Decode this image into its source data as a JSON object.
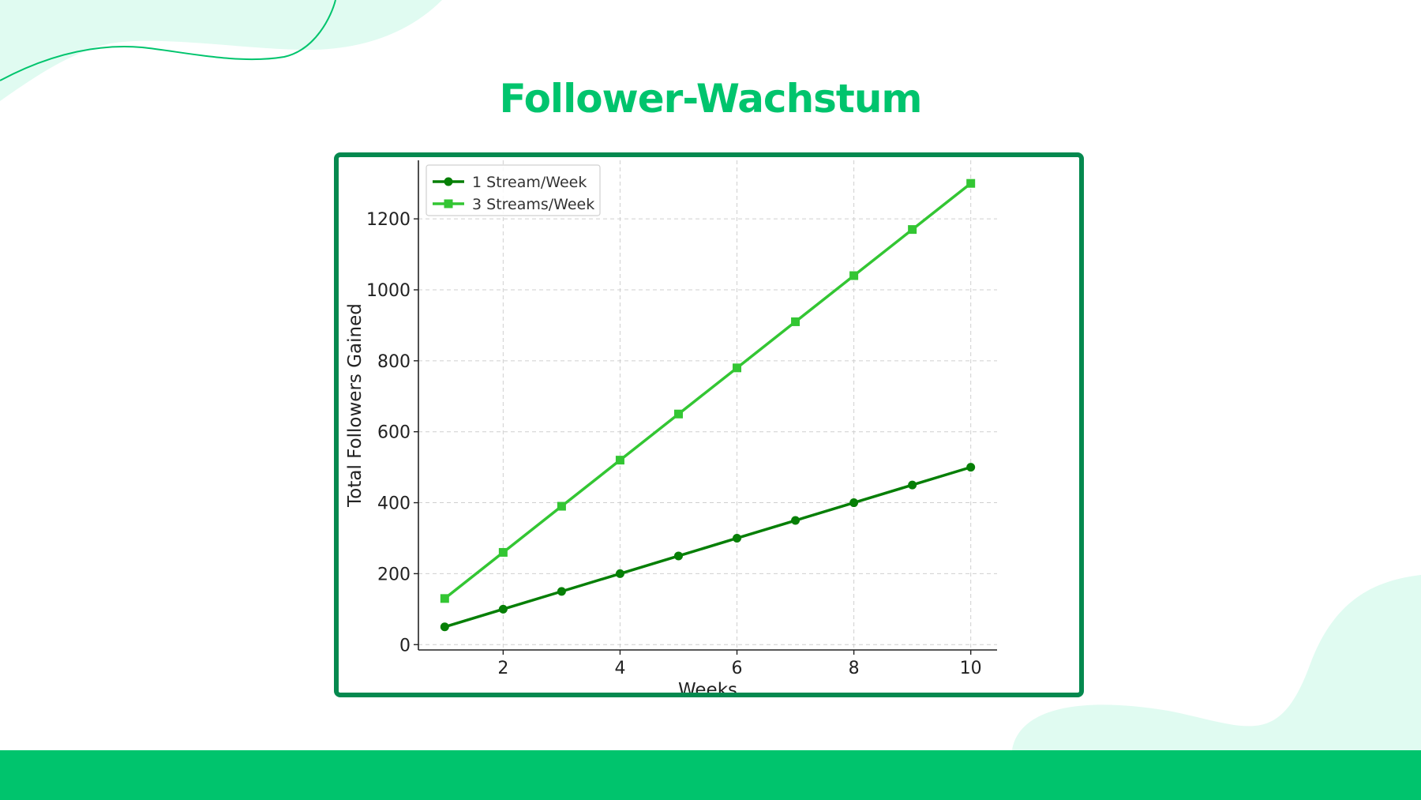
{
  "page": {
    "title": "Follower-Wachstum",
    "accent_color": "#00c46d",
    "frame_color": "#05894f",
    "decor_color": "#e0fbf1"
  },
  "chart_data": {
    "type": "line",
    "title": "",
    "xlabel": "Weeks",
    "ylabel": "Total Followers Gained",
    "x": [
      1,
      2,
      3,
      4,
      5,
      6,
      7,
      8,
      9,
      10
    ],
    "xticks": [
      2,
      4,
      6,
      8,
      10
    ],
    "yticks": [
      0,
      200,
      400,
      600,
      800,
      1000,
      1200
    ],
    "xlim": [
      0.55,
      10.45
    ],
    "ylim": [
      -15,
      1365
    ],
    "grid": true,
    "legend_position": "top-left",
    "series": [
      {
        "name": "1 Stream/Week",
        "marker": "circle",
        "color": "#067f06",
        "values": [
          50,
          100,
          150,
          200,
          250,
          300,
          350,
          400,
          450,
          500
        ]
      },
      {
        "name": "3 Streams/Week",
        "marker": "square",
        "color": "#33c633",
        "values": [
          130,
          260,
          390,
          520,
          650,
          780,
          910,
          1040,
          1170,
          1300
        ]
      }
    ]
  }
}
